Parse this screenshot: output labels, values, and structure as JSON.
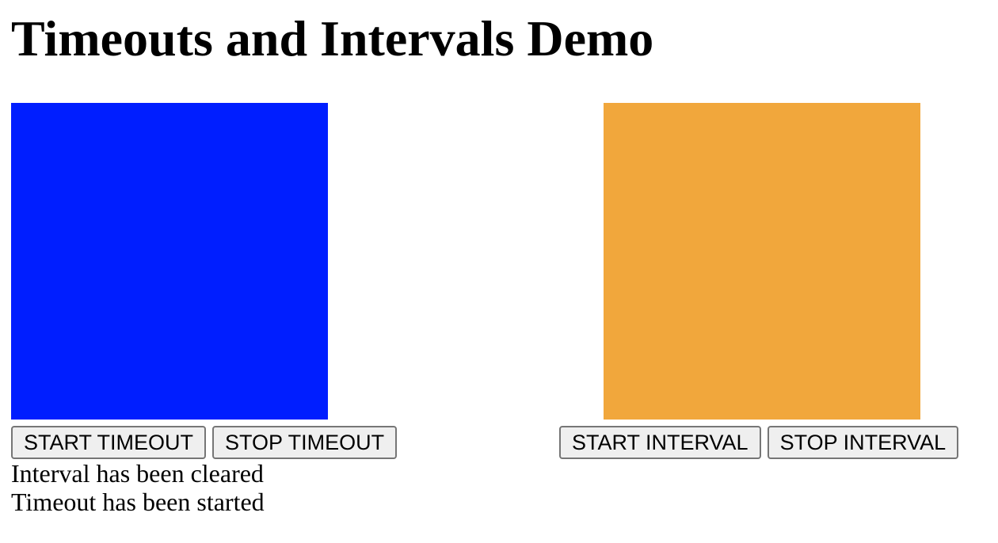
{
  "page": {
    "title": "Timeouts and Intervals Demo"
  },
  "timeout": {
    "box_color": "#001eff",
    "start_label": "START TIMEOUT",
    "stop_label": "STOP TIMEOUT"
  },
  "interval": {
    "box_color": "#f1a73c",
    "start_label": "START INTERVAL",
    "stop_label": "STOP INTERVAL"
  },
  "log": {
    "lines": [
      "Interval has been cleared",
      "Timeout has been started"
    ]
  }
}
